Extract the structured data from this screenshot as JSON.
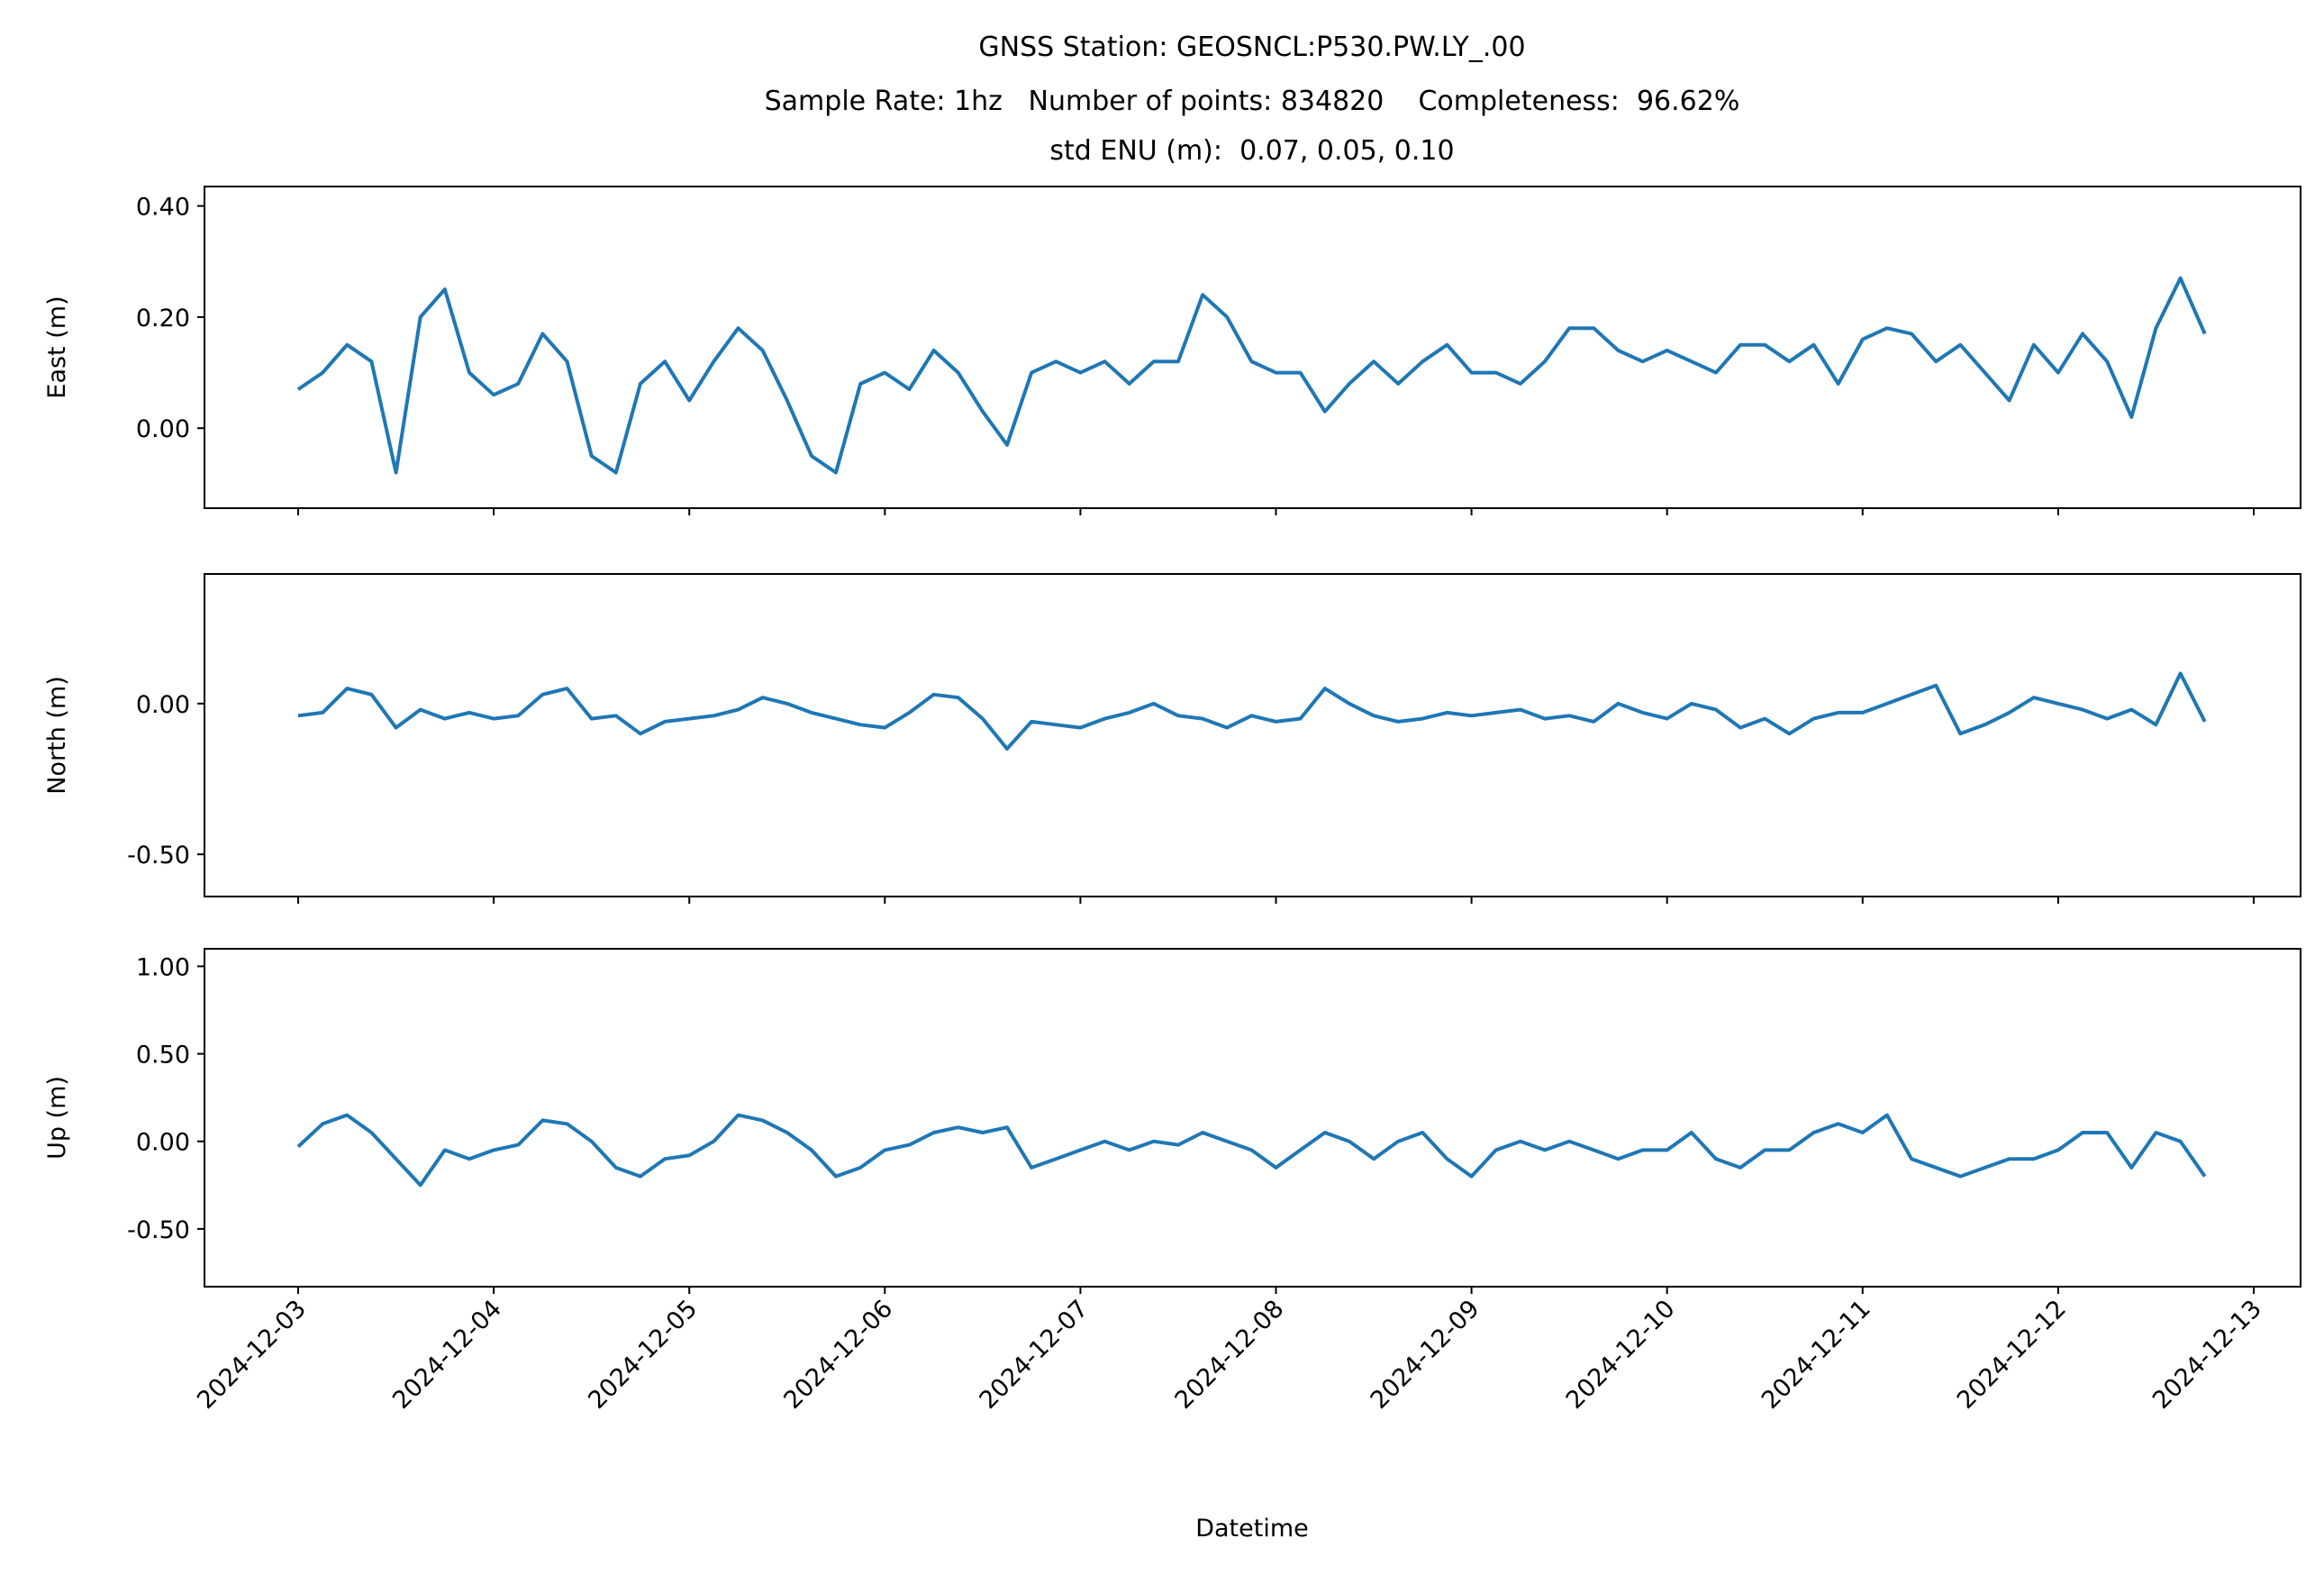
{
  "chart_data": {
    "type": "line",
    "title": [
      "GNSS Station: GEOSNCL:P530.PW.LY_.00",
      "Sample Rate: 1hz   Number of points: 834820    Completeness:  96.62%",
      "std ENU (m):  0.07, 0.05, 0.10"
    ],
    "xlabel": "Datetime",
    "xlim": [
      "2024-12-02T12:30",
      "2024-12-13T05:45"
    ],
    "xticks": [
      "2024-12-03",
      "2024-12-04",
      "2024-12-05",
      "2024-12-06",
      "2024-12-07",
      "2024-12-08",
      "2024-12-09",
      "2024-12-10",
      "2024-12-11",
      "2024-12-12",
      "2024-12-13"
    ],
    "x": [
      "2024-12-03T00:00",
      "2024-12-03T03:00",
      "2024-12-03T06:00",
      "2024-12-03T09:00",
      "2024-12-03T12:00",
      "2024-12-03T15:00",
      "2024-12-03T18:00",
      "2024-12-03T21:00",
      "2024-12-04T00:00",
      "2024-12-04T03:00",
      "2024-12-04T06:00",
      "2024-12-04T09:00",
      "2024-12-04T12:00",
      "2024-12-04T15:00",
      "2024-12-04T18:00",
      "2024-12-04T21:00",
      "2024-12-05T00:00",
      "2024-12-05T03:00",
      "2024-12-05T06:00",
      "2024-12-05T09:00",
      "2024-12-05T12:00",
      "2024-12-05T15:00",
      "2024-12-05T18:00",
      "2024-12-05T21:00",
      "2024-12-06T00:00",
      "2024-12-06T03:00",
      "2024-12-06T06:00",
      "2024-12-06T09:00",
      "2024-12-06T12:00",
      "2024-12-06T15:00",
      "2024-12-06T18:00",
      "2024-12-06T21:00",
      "2024-12-07T00:00",
      "2024-12-07T03:00",
      "2024-12-07T06:00",
      "2024-12-07T09:00",
      "2024-12-07T12:00",
      "2024-12-07T15:00",
      "2024-12-07T18:00",
      "2024-12-07T21:00",
      "2024-12-08T00:00",
      "2024-12-08T03:00",
      "2024-12-08T06:00",
      "2024-12-08T09:00",
      "2024-12-08T12:00",
      "2024-12-08T15:00",
      "2024-12-08T18:00",
      "2024-12-08T21:00",
      "2024-12-09T00:00",
      "2024-12-09T03:00",
      "2024-12-09T06:00",
      "2024-12-09T09:00",
      "2024-12-09T12:00",
      "2024-12-09T15:00",
      "2024-12-09T18:00",
      "2024-12-09T21:00",
      "2024-12-10T00:00",
      "2024-12-10T03:00",
      "2024-12-10T06:00",
      "2024-12-10T09:00",
      "2024-12-10T12:00",
      "2024-12-10T15:00",
      "2024-12-10T18:00",
      "2024-12-10T21:00",
      "2024-12-11T00:00",
      "2024-12-11T03:00",
      "2024-12-11T06:00",
      "2024-12-11T09:00",
      "2024-12-11T12:00",
      "2024-12-11T15:00",
      "2024-12-11T18:00",
      "2024-12-11T21:00",
      "2024-12-12T00:00",
      "2024-12-12T03:00",
      "2024-12-12T06:00",
      "2024-12-12T09:00",
      "2024-12-12T12:00",
      "2024-12-12T15:00",
      "2024-12-12T18:00"
    ],
    "panels": [
      {
        "ylabel": "East (m)",
        "color": "#1f77b4",
        "ylim": [
          -0.144,
          0.435
        ],
        "yticks": [
          {
            "value": 0,
            "label": "0.00"
          },
          {
            "value": 0.2,
            "label": "0.20"
          },
          {
            "value": 0.4,
            "label": "0.40"
          }
        ],
        "values": [
          0.07,
          0.1,
          0.15,
          0.12,
          -0.08,
          0.2,
          0.25,
          0.1,
          0.06,
          0.08,
          0.17,
          0.12,
          -0.05,
          -0.08,
          0.08,
          0.12,
          0.05,
          0.12,
          0.18,
          0.14,
          0.05,
          -0.05,
          -0.08,
          0.08,
          0.1,
          0.07,
          0.14,
          0.1,
          0.03,
          -0.03,
          0.1,
          0.12,
          0.1,
          0.12,
          0.08,
          0.12,
          0.12,
          0.24,
          0.2,
          0.12,
          0.1,
          0.1,
          0.03,
          0.08,
          0.12,
          0.08,
          0.12,
          0.15,
          0.1,
          0.1,
          0.08,
          0.12,
          0.18,
          0.18,
          0.14,
          0.12,
          0.14,
          0.12,
          0.1,
          0.15,
          0.15,
          0.12,
          0.15,
          0.08,
          0.16,
          0.18,
          0.17,
          0.12,
          0.15,
          0.1,
          0.05,
          0.15,
          0.1,
          0.17,
          0.12,
          0.02,
          0.18,
          0.27,
          0.17
        ]
      },
      {
        "ylabel": "North (m)",
        "color": "#1f77b4",
        "ylim": [
          -0.64,
          0.43
        ],
        "yticks": [
          {
            "value": -0.5,
            "label": "-0.50"
          },
          {
            "value": 0,
            "label": "0.00"
          }
        ],
        "values": [
          -0.04,
          -0.03,
          0.05,
          0.03,
          -0.08,
          -0.02,
          -0.05,
          -0.03,
          -0.05,
          -0.04,
          0.03,
          0.05,
          -0.05,
          -0.04,
          -0.1,
          -0.06,
          -0.05,
          -0.04,
          -0.02,
          0.02,
          0.0,
          -0.03,
          -0.05,
          -0.07,
          -0.08,
          -0.03,
          0.03,
          0.02,
          -0.05,
          -0.15,
          -0.06,
          -0.07,
          -0.08,
          -0.05,
          -0.03,
          0.0,
          -0.04,
          -0.05,
          -0.08,
          -0.04,
          -0.06,
          -0.05,
          0.05,
          0.0,
          -0.04,
          -0.06,
          -0.05,
          -0.03,
          -0.04,
          -0.03,
          -0.02,
          -0.05,
          -0.04,
          -0.06,
          0.0,
          -0.03,
          -0.05,
          0.0,
          -0.02,
          -0.08,
          -0.05,
          -0.1,
          -0.05,
          -0.03,
          -0.03,
          0.0,
          0.03,
          0.06,
          -0.1,
          -0.07,
          -0.03,
          0.02,
          0.0,
          -0.02,
          -0.05,
          -0.02,
          -0.07,
          0.1,
          -0.06
        ]
      },
      {
        "ylabel": "Up (m)",
        "color": "#1f77b4",
        "ylim": [
          -0.83,
          1.1
        ],
        "yticks": [
          {
            "value": -0.5,
            "label": "-0.50"
          },
          {
            "value": 0,
            "label": "0.00"
          },
          {
            "value": 0.5,
            "label": "0.50"
          },
          {
            "value": 1,
            "label": "1.00"
          }
        ],
        "values": [
          -0.03,
          0.1,
          0.15,
          0.05,
          -0.1,
          -0.25,
          -0.05,
          -0.1,
          -0.05,
          -0.02,
          0.12,
          0.1,
          0.0,
          -0.15,
          -0.2,
          -0.1,
          -0.08,
          0.0,
          0.15,
          0.12,
          0.05,
          -0.05,
          -0.2,
          -0.15,
          -0.05,
          -0.02,
          0.05,
          0.08,
          0.05,
          0.08,
          -0.15,
          -0.1,
          -0.05,
          0.0,
          -0.05,
          0.0,
          -0.02,
          0.05,
          0.0,
          -0.05,
          -0.15,
          -0.05,
          0.05,
          0.0,
          -0.1,
          0.0,
          0.05,
          -0.1,
          -0.2,
          -0.05,
          0.0,
          -0.05,
          0.0,
          -0.05,
          -0.1,
          -0.05,
          -0.05,
          0.05,
          -0.1,
          -0.15,
          -0.05,
          -0.05,
          0.05,
          0.1,
          0.05,
          0.15,
          -0.1,
          -0.15,
          -0.2,
          -0.15,
          -0.1,
          -0.1,
          -0.05,
          0.05,
          0.05,
          -0.15,
          0.05,
          0.0,
          -0.2
        ]
      }
    ]
  }
}
